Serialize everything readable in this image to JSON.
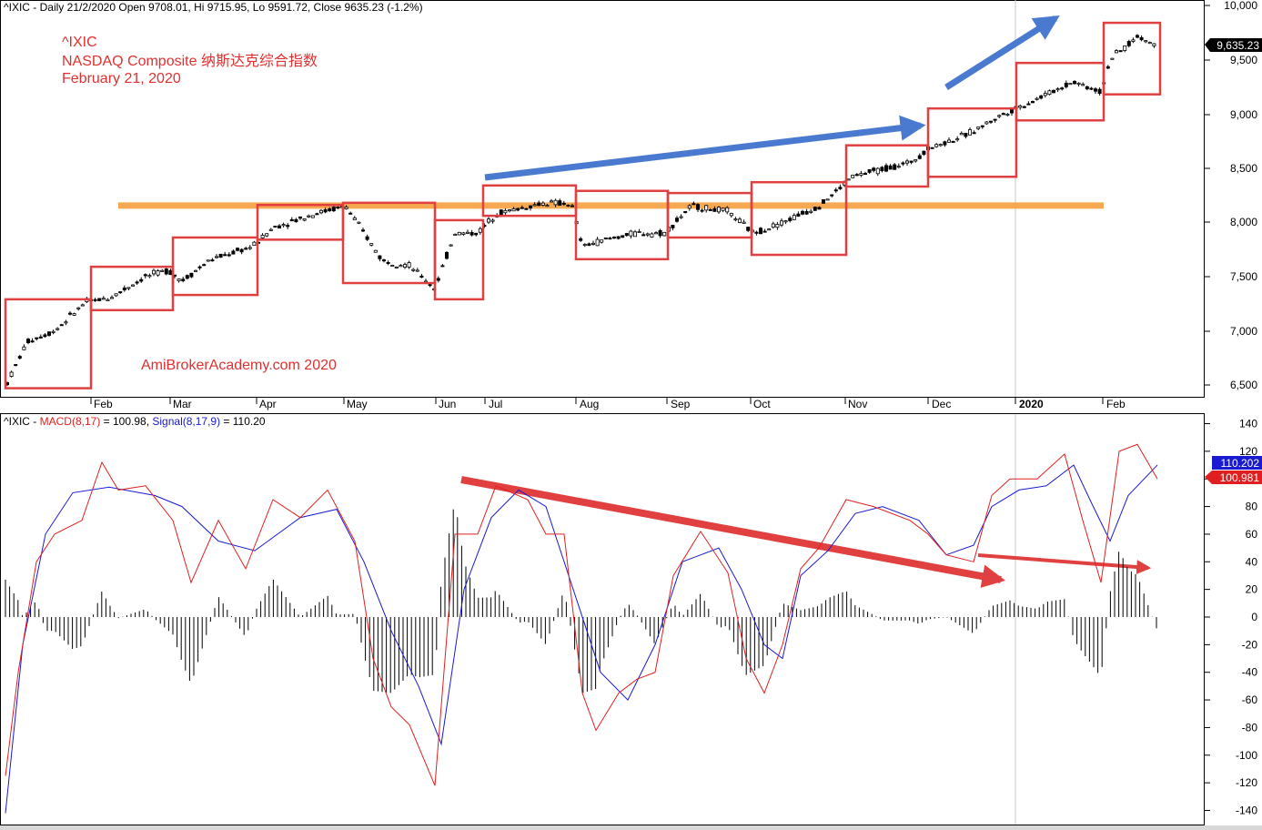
{
  "price_panel": {
    "header": "^IXIC - Daily 21/2/2020 Open 9708.01, Hi 9715.95, Lo 9591.72, Close 9635.23 (-1.2%)",
    "annotation_lines": [
      "^IXIC",
      "NASDAQ Composite  纳斯达克综合指数",
      "February 21, 2020"
    ],
    "watermark": "AmiBrokerAcademy.com   2020",
    "last_price_label": "9,635.23",
    "y_ticks": [
      "6,500",
      "7,000",
      "7,500",
      "8,000",
      "8,500",
      "9,000",
      "9,500",
      "10,000"
    ],
    "x_ticks": [
      "Feb",
      "Mar",
      "Apr",
      "May",
      "Jun",
      "Jul",
      "Aug",
      "Sep",
      "Oct",
      "Nov",
      "Dec",
      "2020",
      "Feb"
    ],
    "resistance_level": 8155
  },
  "macd_panel": {
    "header_prefix": "^IXIC - ",
    "macd_label": "MACD(8,17)",
    "macd_value": " = 100.98, ",
    "signal_label": "Signal(8,17,9)",
    "signal_value": " = 110.20",
    "signal_tag": "110.202",
    "macd_tag": "100.981",
    "y_ticks": [
      "140",
      "120",
      "100",
      "80",
      "60",
      "40",
      "20",
      "0",
      "-20",
      "-40",
      "-60",
      "-80",
      "-100",
      "-120",
      "-140"
    ]
  },
  "colors": {
    "box": "#e04040",
    "resistance": "#f7a040",
    "trend_up": "#4a7ad0",
    "trend_down": "#e04040",
    "macd": "#e02020",
    "signal": "#1a1ad0",
    "text_red": "#e03030"
  },
  "chart_data": [
    {
      "type": "candlestick",
      "title": "^IXIC - Daily 21/2/2020 Open 9708.01, Hi 9715.95, Lo 9591.72, Close 9635.23 (-1.2%)",
      "ylim": [
        6400,
        10050
      ],
      "last_close": 9635.23,
      "monthly_boxes": [
        {
          "month": "Jan 2019",
          "low": 6470,
          "high": 7290
        },
        {
          "month": "Feb 2019",
          "low": 7190,
          "high": 7590
        },
        {
          "month": "Mar 2019",
          "low": 7330,
          "high": 7860
        },
        {
          "month": "Apr 2019",
          "low": 7840,
          "high": 8160
        },
        {
          "month": "May 2019",
          "low": 7440,
          "high": 8180
        },
        {
          "month": "Jun 2019",
          "low": 7290,
          "high": 8020
        },
        {
          "month": "Jul 2019",
          "low": 8060,
          "high": 8340
        },
        {
          "month": "Aug 2019",
          "low": 7660,
          "high": 8290
        },
        {
          "month": "Sep 2019",
          "low": 7860,
          "high": 8270
        },
        {
          "month": "Oct 2019",
          "low": 7700,
          "high": 8370
        },
        {
          "month": "Nov 2019",
          "low": 8330,
          "high": 8710
        },
        {
          "month": "Dec 2019",
          "low": 8420,
          "high": 9050
        },
        {
          "month": "Jan 2020",
          "low": 8940,
          "high": 9470
        },
        {
          "month": "Feb 2020",
          "low": 9180,
          "high": 9840
        }
      ]
    },
    {
      "type": "line",
      "series": [
        {
          "name": "MACD(8,17)",
          "last": 100.98
        },
        {
          "name": "Signal(8,17,9)",
          "last": 110.2
        }
      ],
      "ylim": [
        -150,
        150
      ]
    }
  ]
}
